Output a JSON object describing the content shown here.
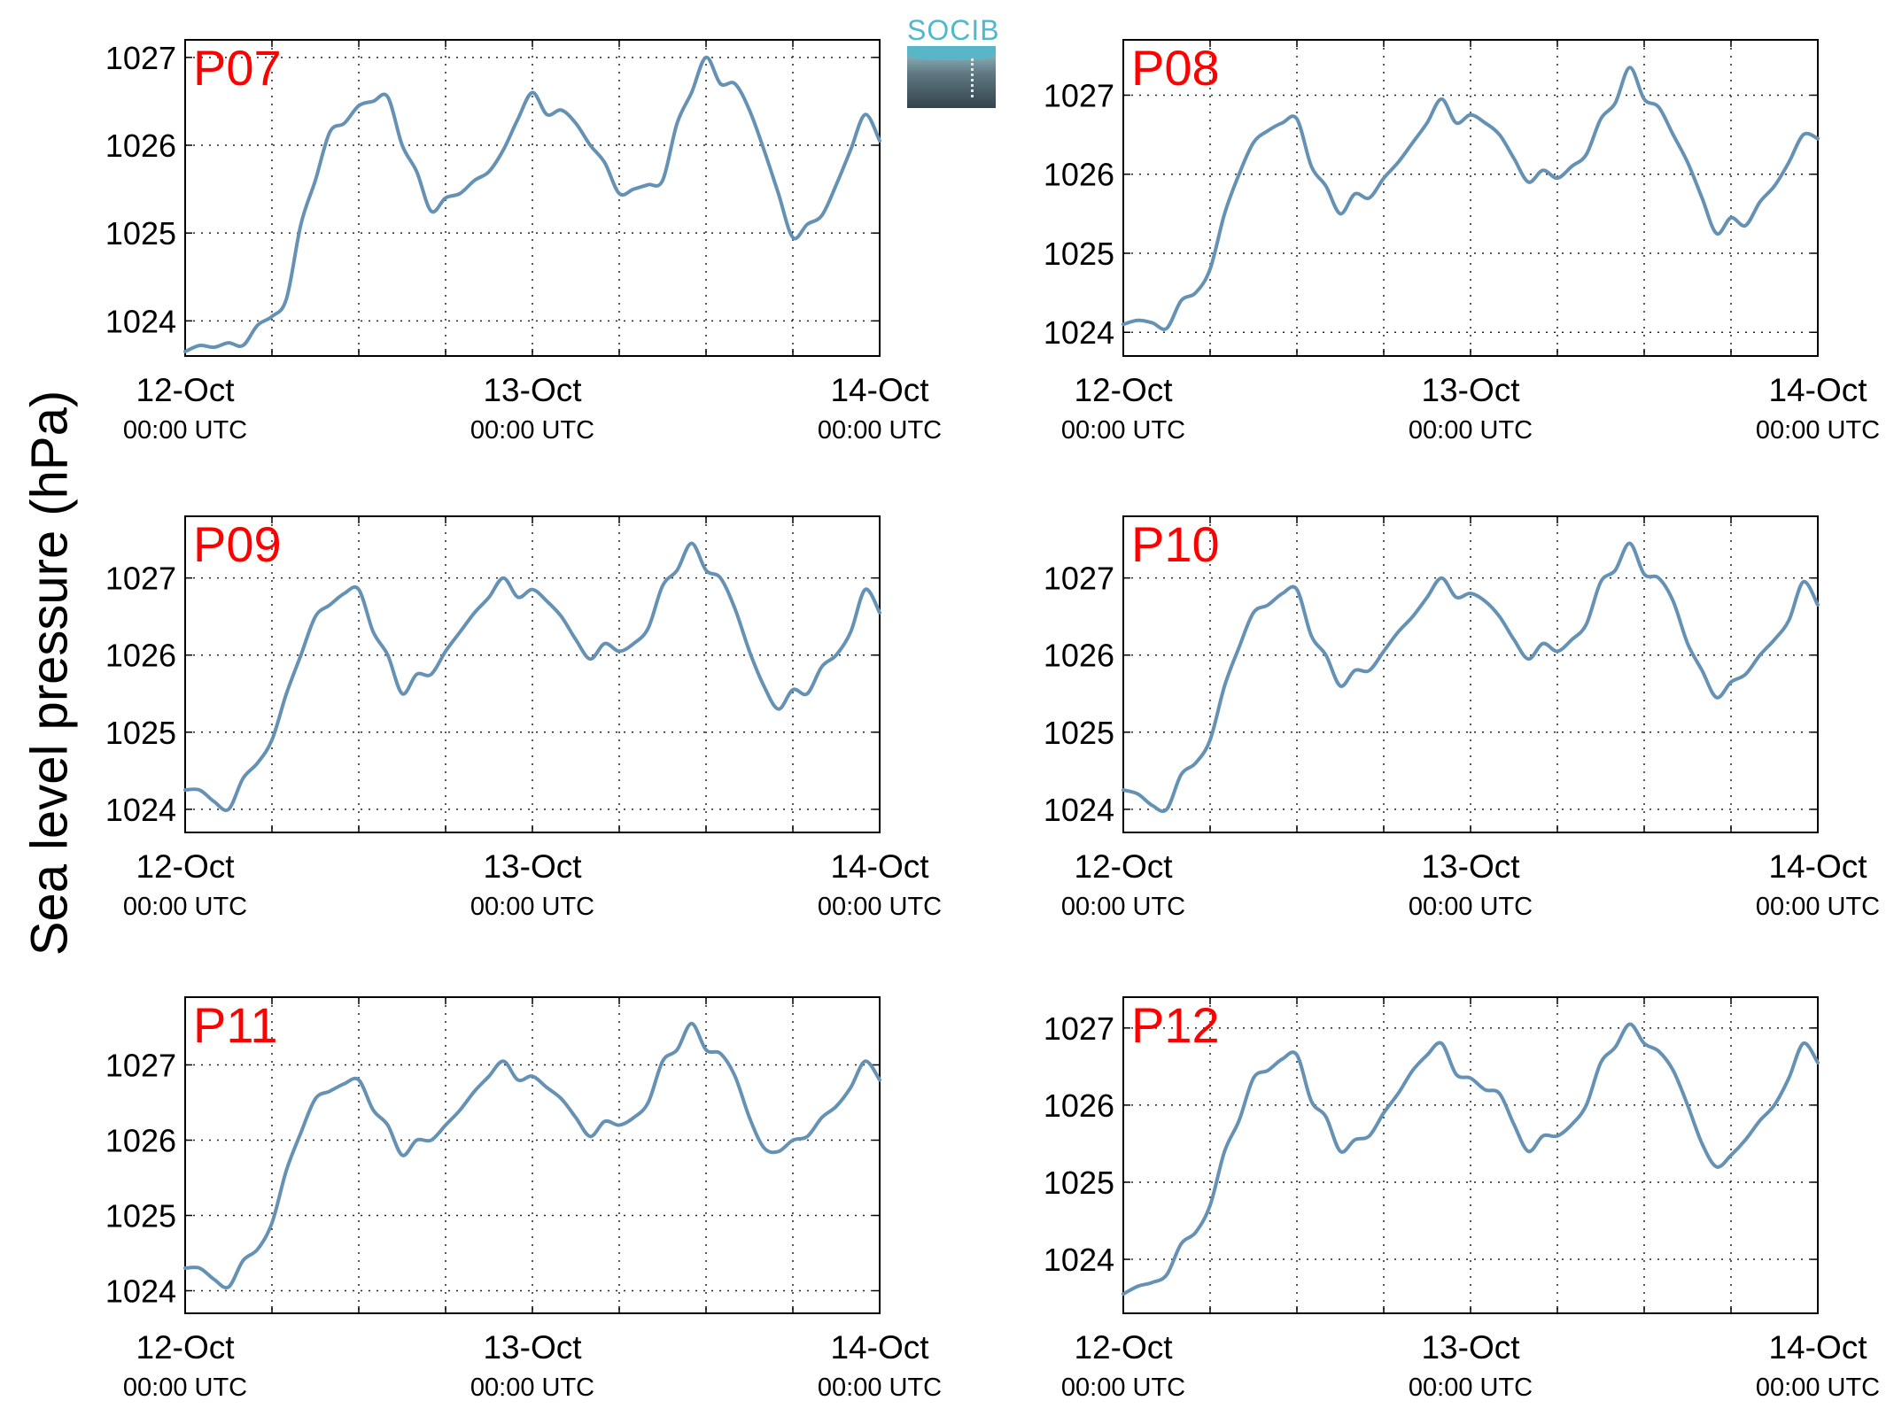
{
  "figure": {
    "ylabel": "Sea level pressure (hPa)",
    "logo_text": "SOCIB"
  },
  "colors": {
    "line": "#6592b4",
    "station_label": "#ff0000",
    "grid": "#222222"
  },
  "chart_data": [
    {
      "type": "line",
      "title": "P07",
      "ylim": [
        1023.6,
        1027.2
      ],
      "yticks": [
        1024,
        1025,
        1026,
        1027
      ],
      "grid": true,
      "xticks": [
        {
          "label": "12-Oct",
          "sub": "00:00 UTC"
        },
        {
          "label": "13-Oct",
          "sub": "00:00 UTC"
        },
        {
          "label": "14-Oct",
          "sub": "00:00 UTC"
        }
      ],
      "x": [
        0,
        1,
        2,
        3,
        4,
        5,
        6,
        7,
        8,
        9,
        10,
        11,
        12,
        13,
        14,
        15,
        16,
        17,
        18,
        19,
        20,
        21,
        22,
        23,
        24,
        25,
        26,
        27,
        28,
        29,
        30,
        31,
        32,
        33,
        34,
        35,
        36,
        37,
        38,
        39,
        40,
        41,
        42,
        43,
        44,
        45,
        46,
        47,
        48
      ],
      "values": [
        1023.65,
        1023.72,
        1023.7,
        1023.75,
        1023.72,
        1023.95,
        1024.05,
        1024.25,
        1025.1,
        1025.6,
        1026.15,
        1026.25,
        1026.45,
        1026.5,
        1026.55,
        1026.0,
        1025.7,
        1025.25,
        1025.4,
        1025.45,
        1025.6,
        1025.7,
        1025.95,
        1026.3,
        1026.6,
        1026.35,
        1026.4,
        1026.25,
        1026.0,
        1025.8,
        1025.45,
        1025.5,
        1025.55,
        1025.6,
        1026.25,
        1026.6,
        1027.0,
        1026.7,
        1026.7,
        1026.4,
        1025.95,
        1025.45,
        1024.95,
        1025.1,
        1025.2,
        1025.55,
        1025.95,
        1026.35,
        1026.05
      ]
    },
    {
      "type": "line",
      "title": "P08",
      "ylim": [
        1023.7,
        1027.7
      ],
      "yticks": [
        1024,
        1025,
        1026,
        1027
      ],
      "grid": true,
      "xticks": [
        {
          "label": "12-Oct",
          "sub": "00:00 UTC"
        },
        {
          "label": "13-Oct",
          "sub": "00:00 UTC"
        },
        {
          "label": "14-Oct",
          "sub": "00:00 UTC"
        }
      ],
      "x": [
        0,
        1,
        2,
        3,
        4,
        5,
        6,
        7,
        8,
        9,
        10,
        11,
        12,
        13,
        14,
        15,
        16,
        17,
        18,
        19,
        20,
        21,
        22,
        23,
        24,
        25,
        26,
        27,
        28,
        29,
        30,
        31,
        32,
        33,
        34,
        35,
        36,
        37,
        38,
        39,
        40,
        41,
        42,
        43,
        44,
        45,
        46,
        47,
        48
      ],
      "values": [
        1024.1,
        1024.15,
        1024.12,
        1024.05,
        1024.4,
        1024.5,
        1024.8,
        1025.5,
        1026.0,
        1026.4,
        1026.55,
        1026.65,
        1026.7,
        1026.1,
        1025.85,
        1025.5,
        1025.75,
        1025.7,
        1025.95,
        1026.15,
        1026.4,
        1026.65,
        1026.95,
        1026.65,
        1026.75,
        1026.65,
        1026.5,
        1026.2,
        1025.9,
        1026.05,
        1025.95,
        1026.1,
        1026.25,
        1026.7,
        1026.9,
        1027.35,
        1026.95,
        1026.85,
        1026.5,
        1026.15,
        1025.7,
        1025.25,
        1025.45,
        1025.35,
        1025.65,
        1025.85,
        1026.15,
        1026.5,
        1026.45
      ]
    },
    {
      "type": "line",
      "title": "P09",
      "ylim": [
        1023.7,
        1027.8
      ],
      "yticks": [
        1024,
        1025,
        1026,
        1027
      ],
      "grid": true,
      "xticks": [
        {
          "label": "12-Oct",
          "sub": "00:00 UTC"
        },
        {
          "label": "13-Oct",
          "sub": "00:00 UTC"
        },
        {
          "label": "14-Oct",
          "sub": "00:00 UTC"
        }
      ],
      "x": [
        0,
        1,
        2,
        3,
        4,
        5,
        6,
        7,
        8,
        9,
        10,
        11,
        12,
        13,
        14,
        15,
        16,
        17,
        18,
        19,
        20,
        21,
        22,
        23,
        24,
        25,
        26,
        27,
        28,
        29,
        30,
        31,
        32,
        33,
        34,
        35,
        36,
        37,
        38,
        39,
        40,
        41,
        42,
        43,
        44,
        45,
        46,
        47,
        48
      ],
      "values": [
        1024.25,
        1024.25,
        1024.1,
        1024.0,
        1024.4,
        1024.6,
        1024.9,
        1025.5,
        1026.0,
        1026.5,
        1026.65,
        1026.8,
        1026.85,
        1026.3,
        1026.0,
        1025.5,
        1025.75,
        1025.75,
        1026.05,
        1026.3,
        1026.55,
        1026.75,
        1027.0,
        1026.75,
        1026.85,
        1026.7,
        1026.5,
        1026.2,
        1025.95,
        1026.15,
        1026.05,
        1026.15,
        1026.35,
        1026.9,
        1027.1,
        1027.45,
        1027.1,
        1027.0,
        1026.6,
        1026.05,
        1025.6,
        1025.3,
        1025.55,
        1025.5,
        1025.85,
        1026.0,
        1026.3,
        1026.85,
        1026.55
      ]
    },
    {
      "type": "line",
      "title": "P10",
      "ylim": [
        1023.7,
        1027.8
      ],
      "yticks": [
        1024,
        1025,
        1026,
        1027
      ],
      "grid": true,
      "xticks": [
        {
          "label": "12-Oct",
          "sub": "00:00 UTC"
        },
        {
          "label": "13-Oct",
          "sub": "00:00 UTC"
        },
        {
          "label": "14-Oct",
          "sub": "00:00 UTC"
        }
      ],
      "x": [
        0,
        1,
        2,
        3,
        4,
        5,
        6,
        7,
        8,
        9,
        10,
        11,
        12,
        13,
        14,
        15,
        16,
        17,
        18,
        19,
        20,
        21,
        22,
        23,
        24,
        25,
        26,
        27,
        28,
        29,
        30,
        31,
        32,
        33,
        34,
        35,
        36,
        37,
        38,
        39,
        40,
        41,
        42,
        43,
        44,
        45,
        46,
        47,
        48
      ],
      "values": [
        1024.25,
        1024.2,
        1024.05,
        1024.0,
        1024.45,
        1024.6,
        1024.9,
        1025.6,
        1026.1,
        1026.55,
        1026.65,
        1026.8,
        1026.85,
        1026.25,
        1026.0,
        1025.6,
        1025.8,
        1025.8,
        1026.05,
        1026.3,
        1026.5,
        1026.75,
        1027.0,
        1026.75,
        1026.8,
        1026.7,
        1026.5,
        1026.2,
        1025.95,
        1026.15,
        1026.05,
        1026.2,
        1026.4,
        1026.95,
        1027.1,
        1027.45,
        1027.05,
        1027.0,
        1026.7,
        1026.15,
        1025.8,
        1025.45,
        1025.65,
        1025.75,
        1026.0,
        1026.2,
        1026.45,
        1026.95,
        1026.65
      ]
    },
    {
      "type": "line",
      "title": "P11",
      "ylim": [
        1023.7,
        1027.9
      ],
      "yticks": [
        1024,
        1025,
        1026,
        1027
      ],
      "grid": true,
      "xticks": [
        {
          "label": "12-Oct",
          "sub": "00:00 UTC"
        },
        {
          "label": "13-Oct",
          "sub": "00:00 UTC"
        },
        {
          "label": "14-Oct",
          "sub": "00:00 UTC"
        }
      ],
      "x": [
        0,
        1,
        2,
        3,
        4,
        5,
        6,
        7,
        8,
        9,
        10,
        11,
        12,
        13,
        14,
        15,
        16,
        17,
        18,
        19,
        20,
        21,
        22,
        23,
        24,
        25,
        26,
        27,
        28,
        29,
        30,
        31,
        32,
        33,
        34,
        35,
        36,
        37,
        38,
        39,
        40,
        41,
        42,
        43,
        44,
        45,
        46,
        47,
        48
      ],
      "values": [
        1024.3,
        1024.3,
        1024.15,
        1024.05,
        1024.4,
        1024.55,
        1024.9,
        1025.6,
        1026.1,
        1026.55,
        1026.65,
        1026.75,
        1026.8,
        1026.4,
        1026.2,
        1025.8,
        1026.0,
        1026.0,
        1026.2,
        1026.4,
        1026.65,
        1026.85,
        1027.05,
        1026.8,
        1026.85,
        1026.7,
        1026.55,
        1026.3,
        1026.05,
        1026.25,
        1026.2,
        1026.3,
        1026.5,
        1027.05,
        1027.2,
        1027.55,
        1027.2,
        1027.15,
        1026.85,
        1026.3,
        1025.9,
        1025.85,
        1026.0,
        1026.05,
        1026.3,
        1026.45,
        1026.7,
        1027.05,
        1026.8
      ]
    },
    {
      "type": "line",
      "title": "P12",
      "ylim": [
        1023.3,
        1027.4
      ],
      "yticks": [
        1024,
        1025,
        1026,
        1027
      ],
      "grid": true,
      "xticks": [
        {
          "label": "12-Oct",
          "sub": "00:00 UTC"
        },
        {
          "label": "13-Oct",
          "sub": "00:00 UTC"
        },
        {
          "label": "14-Oct",
          "sub": "00:00 UTC"
        }
      ],
      "x": [
        0,
        1,
        2,
        3,
        4,
        5,
        6,
        7,
        8,
        9,
        10,
        11,
        12,
        13,
        14,
        15,
        16,
        17,
        18,
        19,
        20,
        21,
        22,
        23,
        24,
        25,
        26,
        27,
        28,
        29,
        30,
        31,
        32,
        33,
        34,
        35,
        36,
        37,
        38,
        39,
        40,
        41,
        42,
        43,
        44,
        45,
        46,
        47,
        48
      ],
      "values": [
        1023.55,
        1023.65,
        1023.7,
        1023.8,
        1024.2,
        1024.35,
        1024.7,
        1025.4,
        1025.8,
        1026.35,
        1026.45,
        1026.6,
        1026.65,
        1026.05,
        1025.85,
        1025.4,
        1025.55,
        1025.6,
        1025.9,
        1026.15,
        1026.45,
        1026.65,
        1026.8,
        1026.4,
        1026.35,
        1026.2,
        1026.15,
        1025.75,
        1025.4,
        1025.6,
        1025.6,
        1025.75,
        1026.0,
        1026.55,
        1026.75,
        1027.05,
        1026.8,
        1026.7,
        1026.45,
        1026.0,
        1025.5,
        1025.2,
        1025.35,
        1025.55,
        1025.8,
        1026.0,
        1026.35,
        1026.8,
        1026.55
      ]
    }
  ]
}
